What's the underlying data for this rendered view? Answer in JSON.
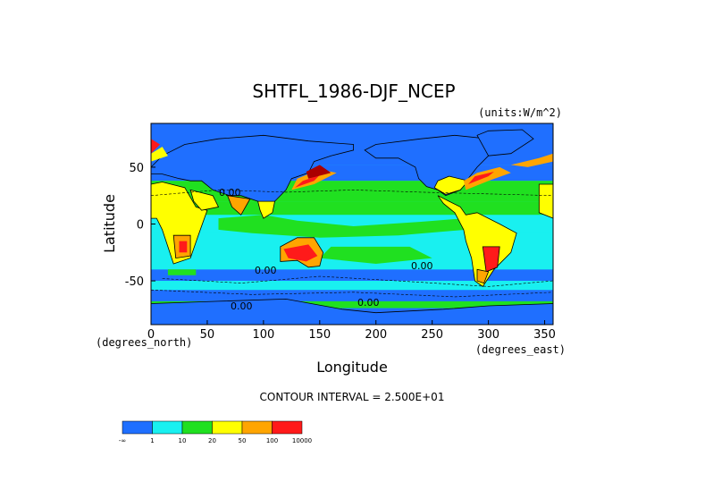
{
  "chart_data": {
    "type": "heatmap",
    "title": "SHTFL_1986-DJF_NCEP",
    "units": "(units:W/m^2)",
    "xlabel": "Longitude",
    "ylabel": "Latitude",
    "x_unit_label": "(degrees_east)",
    "y_unit_label": "(degrees_north)",
    "xlim": [
      0,
      357.5
    ],
    "ylim": [
      -88.5,
      88.5
    ],
    "x_ticks": [
      "0",
      "50",
      "100",
      "150",
      "200",
      "250",
      "300",
      "350"
    ],
    "y_ticks": [
      "50",
      "0",
      "-50"
    ],
    "contour_interval": "CONTOUR INTERVAL = 2.500E+01",
    "contour_labels": [
      "0.00",
      "0.00",
      "0.00",
      "0.00",
      "0.00"
    ],
    "colorbar": {
      "bins": [
        "-∞ to 1",
        "1 to 10",
        "10 to 20",
        "20 to 50",
        "50 to 100",
        "100 to 10000"
      ],
      "colors": [
        "#1f6fff",
        "#19f0f0",
        "#20e020",
        "#ffff00",
        "#ffa500",
        "#ff1a1a"
      ],
      "labels": [
        "-∞",
        "1",
        "10",
        "20",
        "50",
        "100",
        "10000"
      ]
    },
    "palette": {
      "deep": "#1f6fff",
      "cyan": "#19f0f0",
      "green": "#20e020",
      "yellow": "#ffff00",
      "orange": "#ffa500",
      "red": "#ff1a1a",
      "darkred": "#aa0000",
      "land_edge": "#000000"
    }
  }
}
